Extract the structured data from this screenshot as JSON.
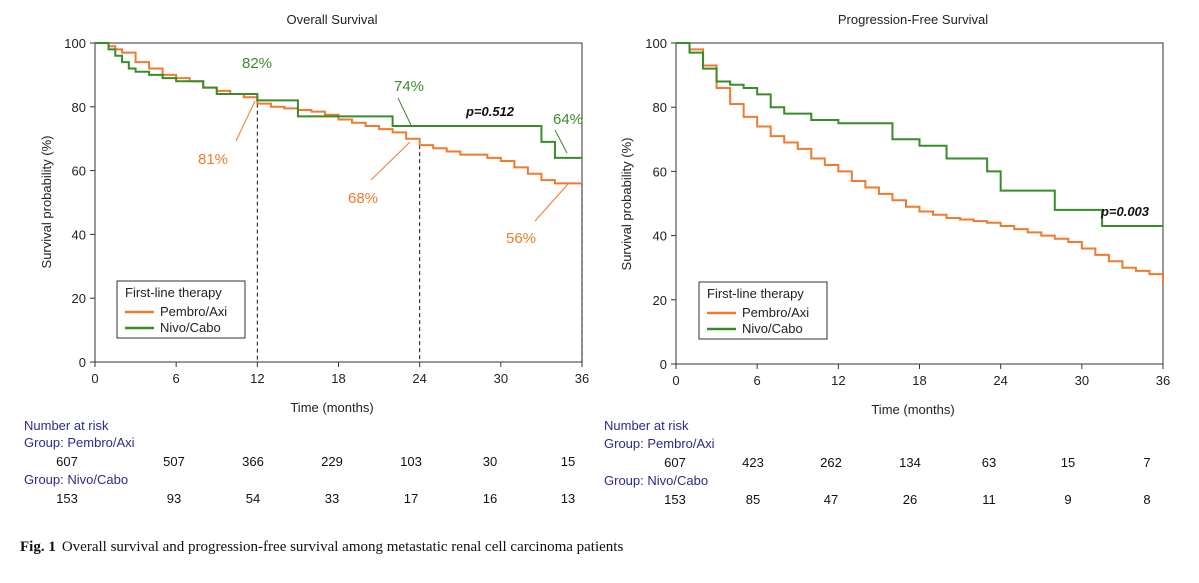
{
  "caption": {
    "label": "Fig. 1",
    "text": "Overall survival and progression-free survival among metastatic renal cell carcinoma patients"
  },
  "colors": {
    "pembro": "#ee7b30",
    "nivo": "#3a8b2a",
    "axis": "#333333",
    "risk_text": "#2b2b8c"
  },
  "chart_data": [
    {
      "type": "line",
      "title": "Overall Survival",
      "xlabel": "Time (months)",
      "ylabel": "Survival probability (%)",
      "xlim": [
        0,
        36
      ],
      "ylim": [
        0,
        100
      ],
      "xticks": [
        0,
        6,
        12,
        18,
        24,
        30,
        36
      ],
      "yticks": [
        0,
        20,
        40,
        60,
        80,
        100
      ],
      "grid": false,
      "legend": {
        "title": "First-line therapy",
        "position": "bottom-left",
        "entries": [
          "Pembro/Axi",
          "Nivo/Cabo"
        ]
      },
      "pvalue": "p=0.512",
      "series": [
        {
          "name": "Pembro/Axi",
          "color": "#ee7b30",
          "x": [
            0,
            1,
            1.5,
            2,
            3,
            4,
            5,
            6,
            7,
            8,
            9,
            10,
            11,
            12,
            13,
            14,
            15,
            16,
            17,
            18,
            19,
            20,
            21,
            22,
            23,
            24,
            25,
            26,
            27,
            28,
            29,
            30,
            31,
            32,
            33,
            34,
            35,
            36
          ],
          "y": [
            100,
            99,
            98,
            97,
            94,
            92,
            90,
            89,
            88,
            86,
            85,
            84,
            83,
            81,
            80,
            79.5,
            79,
            78.5,
            77.5,
            76,
            75,
            74,
            73,
            72,
            70,
            68,
            67,
            66,
            65,
            65,
            64,
            63,
            61,
            59,
            57,
            56,
            56,
            56
          ]
        },
        {
          "name": "Nivo/Cabo",
          "color": "#3a8b2a",
          "x": [
            0,
            1,
            1.5,
            2,
            2.5,
            3,
            4,
            5,
            6,
            8,
            9,
            12,
            15,
            22,
            33,
            34,
            35,
            36
          ],
          "y": [
            100,
            98,
            96,
            94,
            92,
            91,
            90,
            89,
            88,
            86,
            84,
            82,
            77,
            74,
            69,
            64,
            64,
            64
          ]
        }
      ],
      "landmarks": [
        {
          "month": 12,
          "pembro_label": "81%",
          "nivo_label": "82%"
        },
        {
          "month": 24,
          "pembro_label": "68%",
          "nivo_label": "74%"
        },
        {
          "month": 36,
          "pembro_label": "56%",
          "nivo_label": "64%"
        }
      ],
      "risk_table": {
        "title": "Number at risk",
        "groups": [
          {
            "label": "Group: Pembro/Axi",
            "values": [
              607,
              507,
              366,
              229,
              103,
              30,
              15
            ]
          },
          {
            "label": "Group: Nivo/Cabo",
            "values": [
              153,
              93,
              54,
              33,
              17,
              16,
              13
            ]
          }
        ]
      }
    },
    {
      "type": "line",
      "title": "Progression-Free Survival",
      "xlabel": "Time (months)",
      "ylabel": "Survival probability (%)",
      "xlim": [
        0,
        36
      ],
      "ylim": [
        0,
        100
      ],
      "xticks": [
        0,
        6,
        12,
        18,
        24,
        30,
        36
      ],
      "yticks": [
        0,
        20,
        40,
        60,
        80,
        100
      ],
      "grid": false,
      "legend": {
        "title": "First-line therapy",
        "position": "bottom-left",
        "entries": [
          "Pembro/Axi",
          "Nivo/Cabo"
        ]
      },
      "pvalue": "p=0.003",
      "series": [
        {
          "name": "Pembro/Axi",
          "color": "#ee7b30",
          "x": [
            0,
            1,
            2,
            3,
            4,
            5,
            6,
            7,
            8,
            9,
            10,
            11,
            12,
            13,
            14,
            15,
            16,
            17,
            18,
            19,
            20,
            21,
            22,
            23,
            24,
            25,
            26,
            27,
            28,
            29,
            30,
            31,
            32,
            33,
            34,
            35,
            36
          ],
          "y": [
            100,
            98,
            93,
            86,
            81,
            77,
            74,
            71,
            69,
            67,
            64,
            62,
            60,
            57,
            55,
            53,
            51,
            49,
            47.5,
            46.5,
            45.5,
            45,
            44.5,
            44,
            43,
            42,
            41,
            40,
            39,
            38,
            36,
            34,
            32,
            30,
            29,
            28,
            25
          ]
        },
        {
          "name": "Nivo/Cabo",
          "color": "#3a8b2a",
          "x": [
            0,
            1,
            2,
            3,
            4,
            5,
            6,
            7,
            8,
            10,
            12,
            14,
            15,
            16,
            18,
            20,
            23,
            24,
            26,
            28,
            30,
            31,
            31.5,
            33,
            36
          ],
          "y": [
            100,
            97,
            92,
            88,
            87,
            86,
            84,
            80,
            78,
            76,
            75,
            75,
            75,
            70,
            68,
            64,
            60,
            54,
            54,
            48,
            48,
            48,
            43,
            43,
            43
          ]
        }
      ],
      "risk_table": {
        "title": "Number at risk",
        "groups": [
          {
            "label": "Group: Pembro/Axi",
            "values": [
              607,
              423,
              262,
              134,
              63,
              15,
              7
            ]
          },
          {
            "label": "Group: Nivo/Cabo",
            "values": [
              153,
              85,
              47,
              26,
              11,
              9,
              8
            ]
          }
        ]
      }
    }
  ]
}
